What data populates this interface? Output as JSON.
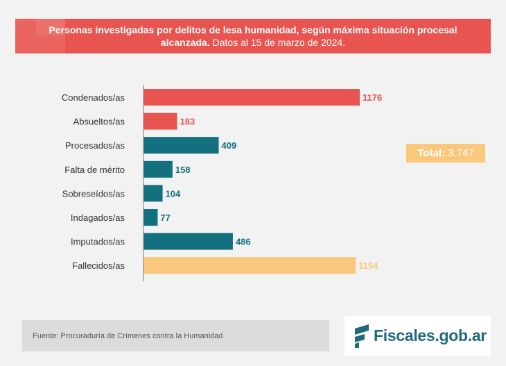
{
  "header": {
    "title_bold": "Personas investigadas por delitos de lesa humanidad, según máxima situación procesal alcanzada.",
    "title_regular": "Datos al 15 de marzo de 2024."
  },
  "total": {
    "label": "Total:",
    "value": "3.747"
  },
  "footer": {
    "source": "Fuente: Procuraduría de Crímenes contra la Humanidad",
    "logo_text": "Fiscales.gob.ar"
  },
  "colors": {
    "red": "#e8544f",
    "teal": "#13707e",
    "yellow": "#fac87c",
    "axis": "#8a8a8a"
  },
  "chart_data": {
    "type": "bar",
    "orientation": "horizontal",
    "categories": [
      "Condenados/as",
      "Absueltos/as",
      "Procesados/as",
      "Falta de mérito",
      "Sobreseídos/as",
      "Indagados/as",
      "Imputados/as",
      "Fallecidos/as"
    ],
    "values": [
      1176,
      183,
      409,
      158,
      104,
      77,
      486,
      1154
    ],
    "bar_colors": [
      "#e8544f",
      "#e8544f",
      "#13707e",
      "#13707e",
      "#13707e",
      "#13707e",
      "#13707e",
      "#fac87c"
    ],
    "value_label_colors": [
      "#e8544f",
      "#e8544f",
      "#13707e",
      "#13707e",
      "#13707e",
      "#13707e",
      "#13707e",
      "#fac87c"
    ],
    "xlim": [
      0,
      1176
    ],
    "grid": false,
    "legend": "none"
  }
}
